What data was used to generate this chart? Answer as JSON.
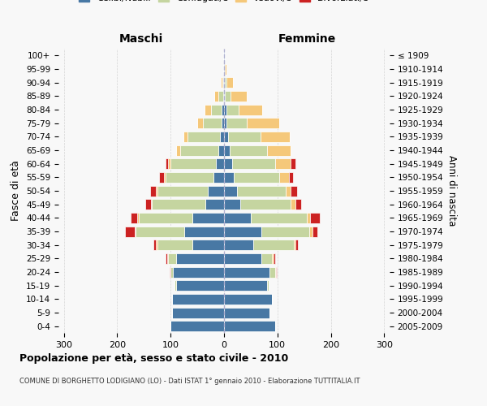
{
  "age_groups": [
    "0-4",
    "5-9",
    "10-14",
    "15-19",
    "20-24",
    "25-29",
    "30-34",
    "35-39",
    "40-44",
    "45-49",
    "50-54",
    "55-59",
    "60-64",
    "65-69",
    "70-74",
    "75-79",
    "80-84",
    "85-89",
    "90-94",
    "95-99",
    "100+"
  ],
  "birth_years": [
    "2005-2009",
    "2000-2004",
    "1995-1999",
    "1990-1994",
    "1985-1989",
    "1980-1984",
    "1975-1979",
    "1970-1974",
    "1965-1969",
    "1960-1964",
    "1955-1959",
    "1950-1954",
    "1945-1949",
    "1940-1944",
    "1935-1939",
    "1930-1934",
    "1925-1929",
    "1920-1924",
    "1915-1919",
    "1910-1914",
    "≤ 1909"
  ],
  "maschi": {
    "celibi": [
      100,
      97,
      97,
      90,
      95,
      90,
      60,
      75,
      60,
      35,
      30,
      20,
      15,
      10,
      8,
      5,
      4,
      2,
      1,
      1,
      1
    ],
    "coniugati": [
      0,
      0,
      0,
      2,
      5,
      15,
      65,
      90,
      100,
      100,
      95,
      90,
      85,
      72,
      60,
      35,
      20,
      8,
      2,
      0,
      0
    ],
    "vedovi": [
      0,
      0,
      0,
      0,
      1,
      2,
      2,
      2,
      2,
      2,
      3,
      3,
      5,
      8,
      8,
      10,
      12,
      8,
      3,
      1,
      0
    ],
    "divorziati": [
      0,
      0,
      0,
      0,
      1,
      2,
      5,
      18,
      12,
      10,
      10,
      8,
      5,
      0,
      0,
      0,
      0,
      0,
      0,
      0,
      0
    ]
  },
  "femmine": {
    "nubili": [
      95,
      85,
      90,
      80,
      85,
      70,
      55,
      70,
      50,
      30,
      25,
      18,
      15,
      10,
      8,
      5,
      5,
      2,
      2,
      1,
      1
    ],
    "coniugate": [
      0,
      0,
      0,
      3,
      10,
      20,
      75,
      90,
      105,
      95,
      90,
      85,
      80,
      70,
      60,
      38,
      22,
      10,
      2,
      0,
      0
    ],
    "vedove": [
      0,
      0,
      0,
      0,
      2,
      3,
      3,
      5,
      6,
      8,
      10,
      18,
      30,
      45,
      55,
      60,
      45,
      30,
      12,
      3,
      1
    ],
    "divorziate": [
      0,
      0,
      0,
      0,
      2,
      3,
      5,
      10,
      18,
      12,
      12,
      8,
      8,
      0,
      0,
      0,
      0,
      0,
      0,
      0,
      0
    ]
  },
  "colors": {
    "celibi": "#4878a4",
    "coniugati": "#c5d5a0",
    "vedovi": "#f5c87a",
    "divorziati": "#cc2222"
  },
  "xlim": 310,
  "title": "Popolazione per età, sesso e stato civile - 2010",
  "subtitle": "COMUNE DI BORGHETTO LODIGIANO (LO) - Dati ISTAT 1° gennaio 2010 - Elaborazione TUTTITALIA.IT",
  "xlabel_left": "Maschi",
  "xlabel_right": "Femmine",
  "ylabel_left": "Fasce di età",
  "ylabel_right": "Anni di nascita",
  "bg_color": "#f8f8f8",
  "grid_color": "#cccccc"
}
